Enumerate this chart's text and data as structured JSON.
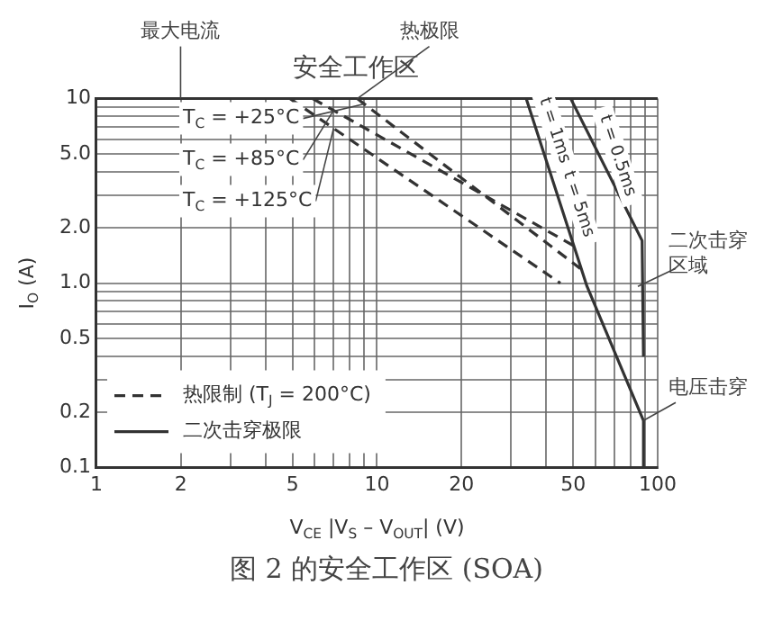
{
  "chart_data": {
    "type": "line",
    "title": "安全工作区",
    "xlabel": "V$_{CE}$ |V$_{S}$ – V$_{OUT}$| (V)",
    "ylabel": "I$_{O}$ (A)",
    "log": "xy",
    "grid": true,
    "legend": "bottom left",
    "marker": "none",
    "xlim": [
      1,
      100
    ],
    "xticks": [
      1,
      2,
      {
        "value": 3,
        "label": null
      },
      {
        "value": 4,
        "label": null
      },
      5,
      {
        "value": 6,
        "label": null
      },
      {
        "value": 7,
        "label": null
      },
      {
        "value": 8,
        "label": null
      },
      {
        "value": 9,
        "label": null
      },
      10,
      20,
      {
        "value": 30,
        "label": null
      },
      {
        "value": 40,
        "label": null
      },
      50,
      {
        "value": 60,
        "label": null
      },
      {
        "value": 70,
        "label": null
      },
      {
        "value": 80,
        "label": null
      },
      {
        "value": 90,
        "label": null
      },
      100
    ],
    "ylim": [
      0.1,
      10
    ],
    "yticks": [
      0.1,
      0.2,
      {
        "value": 0.3,
        "label": null
      },
      {
        "value": 0.4,
        "label": null
      },
      0.5,
      {
        "value": 0.6,
        "label": null
      },
      {
        "value": 0.7,
        "label": null
      },
      {
        "value": 0.8,
        "label": null
      },
      {
        "value": 0.9,
        "label": null
      },
      {
        "value": 1,
        "label": "1.0"
      },
      {
        "value": 2,
        "label": "2.0"
      },
      {
        "value": 3,
        "label": null
      },
      {
        "value": 4,
        "label": null
      },
      {
        "value": 5,
        "label": "5.0"
      },
      {
        "value": 6,
        "label": null
      },
      {
        "value": 7,
        "label": null
      },
      {
        "value": 8,
        "label": null
      },
      {
        "value": 9,
        "label": null
      },
      10
    ],
    "series": [
      {
        "name": "热限制 (T$_{J}$ = 200°C)",
        "color": "#333333",
        "line_style": "dashed",
        "x": [
          8.5,
          53
        ],
        "values": [
          10,
          1.2
        ]
      },
      {
        "color": "#333333",
        "line_style": "dashed",
        "x": [
          5.9,
          50
        ],
        "values": [
          10,
          1.6
        ]
      },
      {
        "color": "#333333",
        "line_style": "dashed",
        "x": [
          4.9,
          45
        ],
        "values": [
          10,
          1.0
        ]
      },
      {
        "name": "二次击穿极限",
        "color": "#333333",
        "line_style": "solid",
        "x": [
          34,
          56,
          89,
          89
        ],
        "values": [
          10,
          0.96,
          0.18,
          0.1
        ]
      },
      {
        "color": "#333333",
        "line_style": "solid",
        "x": [
          49,
          88,
          89
        ],
        "values": [
          10,
          1.7,
          0.4
        ]
      }
    ],
    "annotations": [
      {
        "text": "热极限",
        "x": 8.5,
        "y": 10
      },
      {
        "text": "T$_{C}$ = +25°C",
        "x": 9,
        "y": 9.36
      },
      {
        "text": "T$_{C}$ = +85°C",
        "x": 7,
        "y": 8.64
      },
      {
        "text": "T$_{C}$ = +125°C",
        "x": 7,
        "y": 6.9
      },
      {
        "text": "t = 1ms",
        "x": 37,
        "y": 6.72
      },
      {
        "text": "t = 0.5ms",
        "x": 62,
        "y": 4.9
      },
      {
        "text": "t = 5ms",
        "x": 45,
        "y": 2.68
      },
      {
        "text": "二次击穿区域",
        "x": 85,
        "y": 0.96
      },
      {
        "text": "电压击穿",
        "x": 89,
        "y": 0.18
      },
      "图 2 的安全工作区 (SOA)"
    ],
    "ref_lines": [
      {
        "axis": "y",
        "value": 10,
        "label": "最大电流"
      }
    ]
  }
}
